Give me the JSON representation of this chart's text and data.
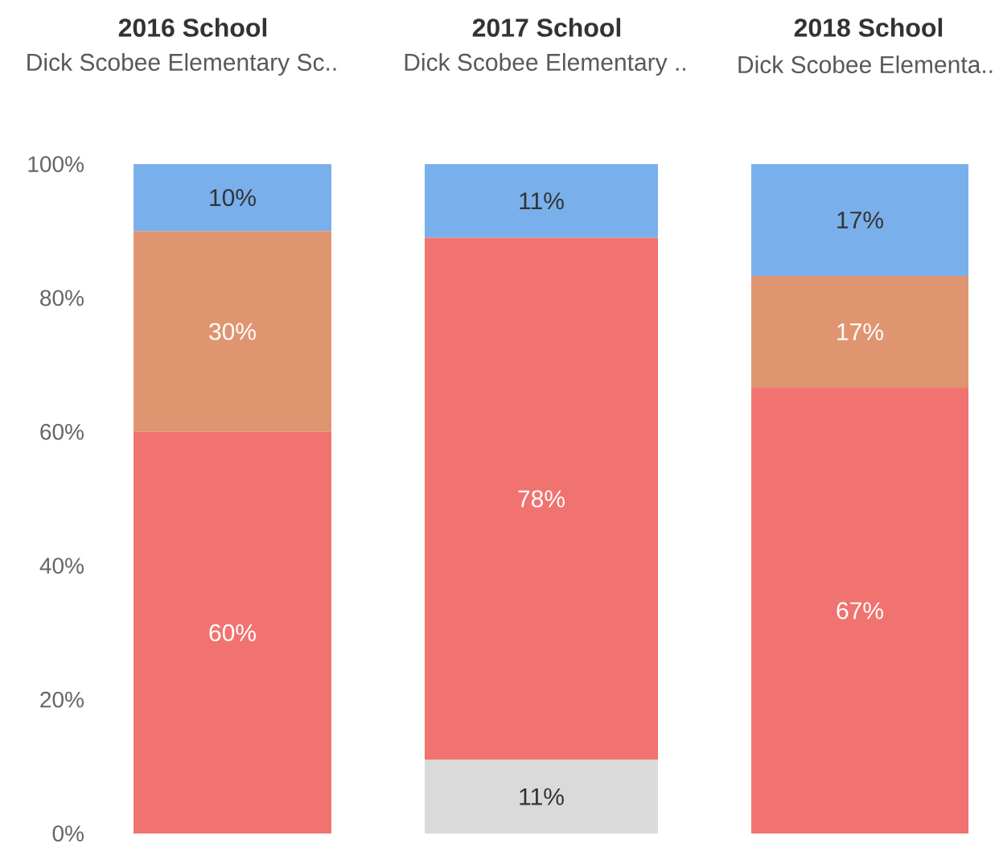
{
  "chart_data": [
    {
      "type": "bar",
      "stacked": true,
      "title": "2016 School",
      "categories": [
        "Dick Scobee Elementary Sc.."
      ],
      "ylim": [
        0,
        100
      ],
      "yticks": [
        {
          "value": 0,
          "label": "0%"
        },
        {
          "value": 20,
          "label": "20%"
        },
        {
          "value": 40,
          "label": "40%"
        },
        {
          "value": 60,
          "label": "60%"
        },
        {
          "value": 80,
          "label": "80%"
        },
        {
          "value": 100,
          "label": "100%"
        }
      ],
      "series": [
        {
          "color": "#f0736f",
          "values": [
            60
          ],
          "value_labels": [
            "60%"
          ]
        },
        {
          "color": "#df9570",
          "values": [
            30
          ],
          "value_labels": [
            "30%"
          ]
        },
        {
          "color": "#79b0ec",
          "values": [
            10
          ],
          "value_labels": [
            "10%"
          ]
        }
      ]
    },
    {
      "type": "bar",
      "stacked": true,
      "title": "2017 School",
      "categories": [
        "Dick Scobee Elementary .."
      ],
      "ylim": [
        0,
        100
      ],
      "tick_labels": "x",
      "series": [
        {
          "color": "#dadada",
          "values": [
            11
          ],
          "value_labels": [
            "11%"
          ]
        },
        {
          "color": "#f0736f",
          "values": [
            78
          ],
          "value_labels": [
            "78%"
          ]
        },
        {
          "color": "#79b0ec",
          "values": [
            11
          ],
          "value_labels": [
            "11%"
          ]
        }
      ]
    },
    {
      "type": "bar",
      "stacked": true,
      "title": "2018 School",
      "categories": [
        "Dick Scobee Elementa.."
      ],
      "ylim": [
        0,
        100
      ],
      "tick_labels": "x",
      "series": [
        {
          "color": "#f0736f",
          "values": [
            66.6
          ],
          "value_labels": [
            "67%"
          ]
        },
        {
          "color": "#df9570",
          "values": [
            16.7
          ],
          "value_labels": [
            "17%"
          ]
        },
        {
          "color": "#79b0ec",
          "values": [
            16.7
          ],
          "value_labels": [
            "17%"
          ]
        }
      ]
    }
  ]
}
